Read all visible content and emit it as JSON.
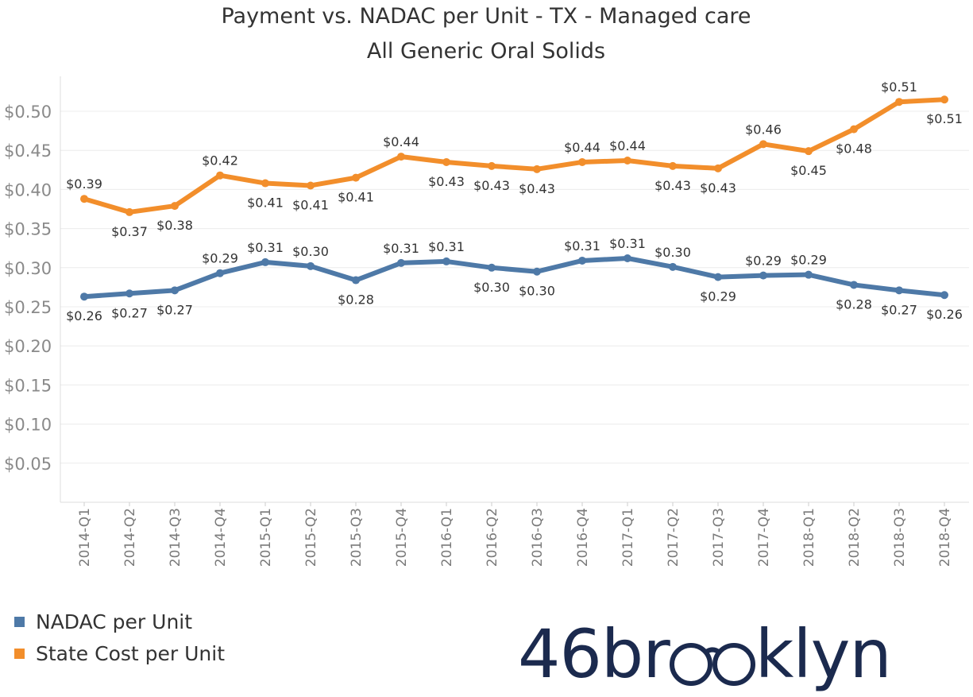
{
  "title_line1": "Payment vs. NADAC per Unit - TX - Managed care",
  "title_line2": "All Generic Oral Solids",
  "legend": [
    {
      "name": "NADAC per Unit",
      "color": "#4e79a7"
    },
    {
      "name": "State Cost per Unit",
      "color": "#f28e2b"
    }
  ],
  "logo": {
    "prefix": "46br",
    "suffix": "klyn"
  },
  "chart_data": {
    "type": "line",
    "categories": [
      "2014-Q1",
      "2014-Q2",
      "2014-Q3",
      "2014-Q4",
      "2015-Q1",
      "2015-Q2",
      "2015-Q3",
      "2015-Q4",
      "2016-Q1",
      "2016-Q2",
      "2016-Q3",
      "2016-Q4",
      "2017-Q1",
      "2017-Q2",
      "2017-Q3",
      "2017-Q4",
      "2018-Q1",
      "2018-Q2",
      "2018-Q3",
      "2018-Q4"
    ],
    "ylim": [
      0,
      0.55
    ],
    "yticks": [
      "$0.05",
      "$0.10",
      "$0.15",
      "$0.20",
      "$0.25",
      "$0.30",
      "$0.35",
      "$0.40",
      "$0.45",
      "$0.50"
    ],
    "ytick_values": [
      0.05,
      0.1,
      0.15,
      0.2,
      0.25,
      0.3,
      0.35,
      0.4,
      0.45,
      0.5
    ],
    "grid": true,
    "legend_position": "bottom-left",
    "series": [
      {
        "name": "NADAC per Unit",
        "color": "#4e79a7",
        "values": [
          0.263,
          0.267,
          0.271,
          0.293,
          0.307,
          0.302,
          0.284,
          0.306,
          0.308,
          0.3,
          0.295,
          0.309,
          0.312,
          0.301,
          0.288,
          0.29,
          0.291,
          0.278,
          0.271,
          0.265
        ],
        "labels": [
          "$0.26",
          "$0.27",
          "$0.27",
          "$0.29",
          "$0.31",
          "$0.30",
          "$0.28",
          "$0.31",
          "$0.31",
          "$0.30",
          "$0.30",
          "$0.31",
          "$0.31",
          "$0.30",
          "$0.29",
          "$0.29",
          "$0.29",
          "$0.28",
          "$0.27",
          "$0.26"
        ],
        "label_pos": [
          "below",
          "below",
          "below",
          "above",
          "above",
          "above",
          "below",
          "above",
          "above",
          "below",
          "below",
          "above",
          "above",
          "above",
          "below",
          "above",
          "above",
          "below",
          "below",
          "below"
        ]
      },
      {
        "name": "State Cost per Unit",
        "color": "#f28e2b",
        "values": [
          0.388,
          0.371,
          0.379,
          0.418,
          0.408,
          0.405,
          0.415,
          0.442,
          0.435,
          0.43,
          0.426,
          0.435,
          0.437,
          0.43,
          0.427,
          0.458,
          0.449,
          0.477,
          0.512,
          0.515
        ],
        "labels": [
          "$0.39",
          "$0.37",
          "$0.38",
          "$0.42",
          "$0.41",
          "$0.41",
          "$0.41",
          "$0.44",
          "$0.43",
          "$0.43",
          "$0.43",
          "$0.44",
          "$0.44",
          "$0.43",
          "$0.43",
          "$0.46",
          "$0.45",
          "$0.48",
          "$0.51",
          "$0.51"
        ],
        "label_pos": [
          "above",
          "below",
          "below",
          "above",
          "below",
          "below",
          "below",
          "above",
          "below",
          "below",
          "below",
          "above",
          "above",
          "below",
          "below",
          "above",
          "below",
          "below",
          "above",
          "below"
        ]
      }
    ]
  }
}
